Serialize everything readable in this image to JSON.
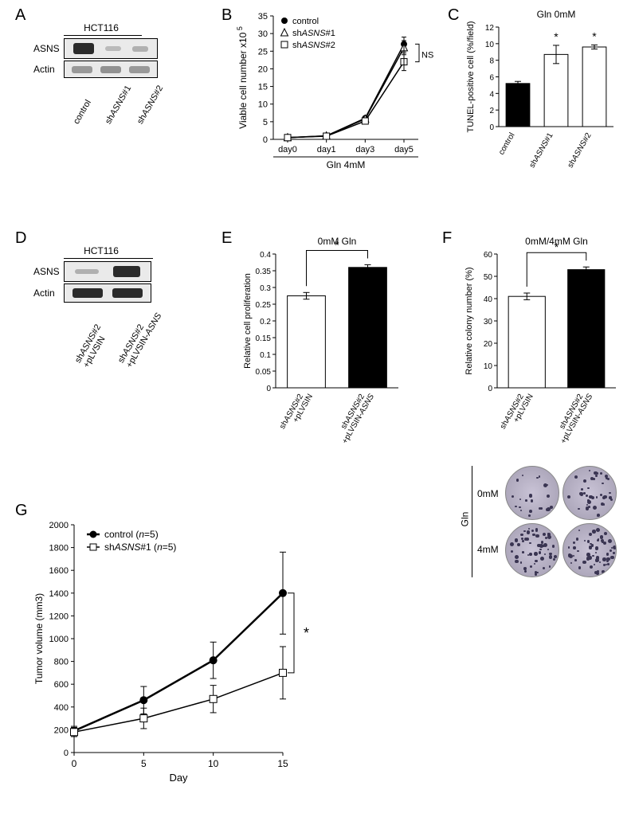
{
  "labels": {
    "A": "A",
    "B": "B",
    "C": "C",
    "D": "D",
    "E": "E",
    "F": "F",
    "G": "G"
  },
  "A": {
    "title": "HCT116",
    "rows": [
      "ASNS",
      "Actin"
    ],
    "lanes": [
      "control",
      "shASNS#1",
      "shASNS#2"
    ],
    "asns_intensity": [
      1.0,
      0.08,
      0.12
    ],
    "actin_intensity": [
      0.85,
      0.9,
      0.85
    ],
    "band_color": "#2b2b2b",
    "bg": "#eaeaea"
  },
  "B": {
    "title_fontsize": 12,
    "ylabel": "Viable cell number x10",
    "ylabel_sup": "5",
    "ylim": [
      0,
      35
    ],
    "ytick_step": 5,
    "xticks": [
      "day0",
      "day1",
      "day3",
      "day5"
    ],
    "xcondition": "Gln 4mM",
    "series": [
      {
        "name": "control",
        "marker": "circle-filled",
        "values": [
          0.5,
          1.0,
          6.0,
          27
        ]
      },
      {
        "name": "shASNS#1",
        "marker": "triangle-open",
        "values": [
          0.5,
          1.0,
          5.8,
          26
        ]
      },
      {
        "name": "shASNS#2",
        "marker": "square-open",
        "values": [
          0.5,
          0.9,
          5.2,
          22
        ]
      }
    ],
    "errorbars": {
      "day5": [
        2.0,
        2.0,
        2.5
      ]
    },
    "ns_label": "NS",
    "line_color": "#000",
    "marker_size": 6
  },
  "C": {
    "title": "Gln 0mM",
    "ylabel": "TUNEL-positive cell (%/field)",
    "ylim": [
      0,
      12
    ],
    "ytick_step": 2,
    "bars": [
      {
        "label": "control",
        "value": 5.2,
        "err": 0.25,
        "fill": "#000000"
      },
      {
        "label": "shASNS#1",
        "value": 8.7,
        "err": 1.1,
        "fill": "#ffffff"
      },
      {
        "label": "shASNS#2",
        "value": 9.6,
        "err": 0.25,
        "fill": "#ffffff"
      }
    ],
    "sig": "*"
  },
  "D": {
    "title": "HCT116",
    "rows": [
      "ASNS",
      "Actin"
    ],
    "lanes": [
      "shASNS#2\n+pLVSIN",
      "shASNS#2\n+pLVSIN-ASNS"
    ],
    "asns_intensity": [
      0.12,
      1.0
    ],
    "actin_intensity": [
      1.0,
      1.0
    ],
    "band_color": "#1a1a1a",
    "bg": "#e8e8e8"
  },
  "E": {
    "title": "0mM Gln",
    "ylabel": "Relative cell proliferation",
    "ylim": [
      0,
      0.4
    ],
    "ytick_step": 0.05,
    "bars": [
      {
        "label": "shASNS#2\n+pLVSIN",
        "value": 0.275,
        "err": 0.01,
        "fill": "#ffffff"
      },
      {
        "label": "shASNS#2\n+pLVSIN-ASNS",
        "value": 0.36,
        "err": 0.008,
        "fill": "#000000"
      }
    ],
    "sig": "*"
  },
  "F": {
    "title": "0mM/4mM Gln",
    "ylabel": "Relative colony number (%)",
    "ylim": [
      0,
      60
    ],
    "ytick_step": 10,
    "bars": [
      {
        "label": "shASNS#2\n+pLVSIN",
        "value": 41,
        "err": 1.5,
        "fill": "#ffffff"
      },
      {
        "label": "shASNS#2\n+pLVSIN-ASNS",
        "value": 53,
        "err": 1.2,
        "fill": "#000000"
      }
    ],
    "sig": "*",
    "dish_rows": [
      "0mM",
      "4mM"
    ],
    "dish_side": "Gln",
    "spot_counts": {
      "0mM": [
        22,
        42
      ],
      "4mM": [
        55,
        58
      ]
    }
  },
  "G": {
    "ylabel": "Tumor volume (mm3)",
    "ylim": [
      0,
      2000
    ],
    "ytick_step": 200,
    "xlabel": "Day",
    "xticks": [
      0,
      5,
      10,
      15
    ],
    "series": [
      {
        "name": "control  (n=5)",
        "marker": "circle-filled",
        "values": [
          190,
          460,
          810,
          1400
        ],
        "err": [
          40,
          120,
          160,
          360
        ],
        "lw": 2.5
      },
      {
        "name": "shASNS#1  (n=5)",
        "marker": "square-open",
        "values": [
          180,
          300,
          470,
          700
        ],
        "err": [
          40,
          90,
          120,
          230
        ],
        "lw": 1.5
      }
    ],
    "sig": "*"
  }
}
